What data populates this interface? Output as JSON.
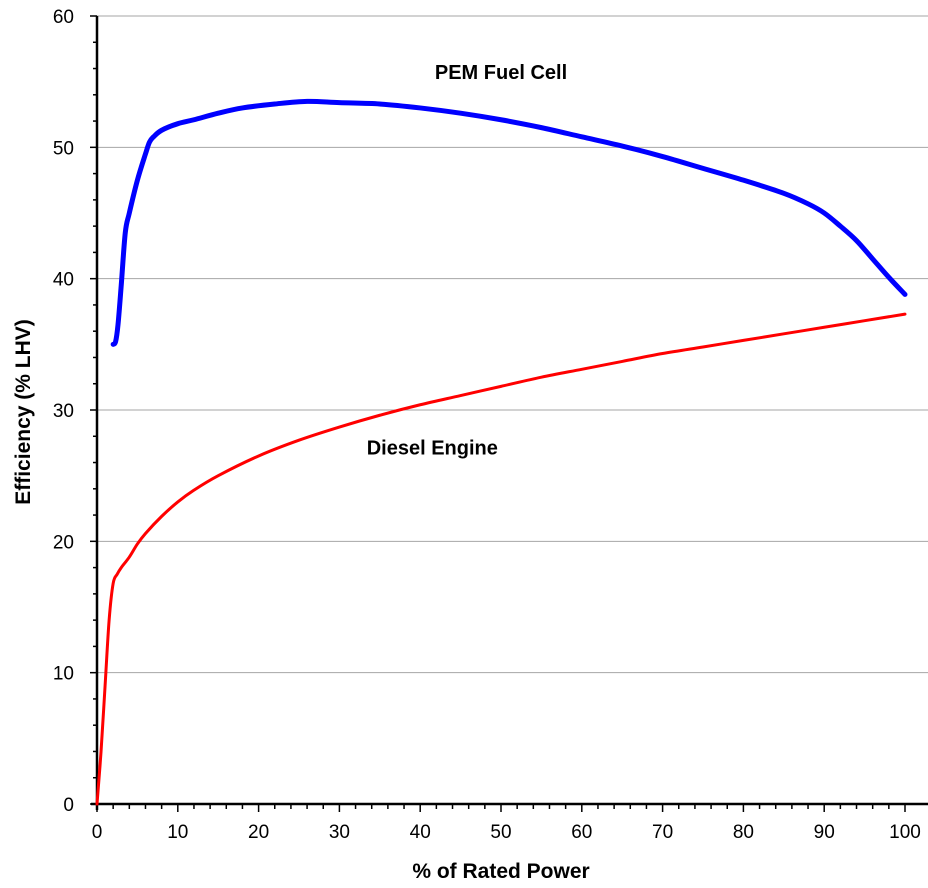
{
  "chart_data": {
    "type": "line",
    "title": "",
    "xlabel": "% of Rated Power",
    "ylabel": "Efficiency  (% LHV)",
    "xlim": [
      0,
      100
    ],
    "ylim": [
      0,
      60
    ],
    "x_ticks": [
      0,
      10,
      20,
      30,
      40,
      50,
      60,
      70,
      80,
      90,
      100
    ],
    "y_ticks": [
      0,
      10,
      20,
      30,
      40,
      50,
      60
    ],
    "grid": "horizontal",
    "series": [
      {
        "name": "PEM Fuel Cell",
        "color": "#0000ff",
        "points": [
          [
            2,
            35
          ],
          [
            2.3,
            35.2
          ],
          [
            2.6,
            36.5
          ],
          [
            3,
            39.5
          ],
          [
            3.5,
            43.5
          ],
          [
            4,
            45
          ],
          [
            5,
            47.5
          ],
          [
            6,
            49.5
          ],
          [
            6.5,
            50.4
          ],
          [
            7,
            50.8
          ],
          [
            8,
            51.3
          ],
          [
            10,
            51.8
          ],
          [
            12,
            52.1
          ],
          [
            15,
            52.6
          ],
          [
            18,
            53
          ],
          [
            22,
            53.3
          ],
          [
            26,
            53.5
          ],
          [
            30,
            53.4
          ],
          [
            35,
            53.3
          ],
          [
            40,
            53
          ],
          [
            45,
            52.6
          ],
          [
            50,
            52.1
          ],
          [
            55,
            51.5
          ],
          [
            60,
            50.8
          ],
          [
            65,
            50.1
          ],
          [
            70,
            49.3
          ],
          [
            75,
            48.4
          ],
          [
            80,
            47.5
          ],
          [
            85,
            46.5
          ],
          [
            88,
            45.7
          ],
          [
            90,
            45
          ],
          [
            92,
            44
          ],
          [
            94,
            42.9
          ],
          [
            96,
            41.5
          ],
          [
            98,
            40.1
          ],
          [
            100,
            38.8
          ]
        ]
      },
      {
        "name": "Diesel Engine",
        "color": "#ff0000",
        "points": [
          [
            0,
            0
          ],
          [
            0.5,
            4
          ],
          [
            1,
            9
          ],
          [
            1.5,
            14
          ],
          [
            2,
            16.8
          ],
          [
            2.5,
            17.5
          ],
          [
            3,
            18
          ],
          [
            4,
            18.8
          ],
          [
            5,
            19.8
          ],
          [
            6,
            20.6
          ],
          [
            8,
            21.9
          ],
          [
            10,
            23
          ],
          [
            12,
            23.9
          ],
          [
            15,
            25
          ],
          [
            20,
            26.5
          ],
          [
            25,
            27.7
          ],
          [
            30,
            28.7
          ],
          [
            35,
            29.6
          ],
          [
            40,
            30.4
          ],
          [
            45,
            31.1
          ],
          [
            50,
            31.8
          ],
          [
            55,
            32.5
          ],
          [
            60,
            33.1
          ],
          [
            65,
            33.7
          ],
          [
            70,
            34.3
          ],
          [
            75,
            34.8
          ],
          [
            80,
            35.3
          ],
          [
            85,
            35.8
          ],
          [
            90,
            36.3
          ],
          [
            95,
            36.8
          ],
          [
            100,
            37.3
          ]
        ]
      }
    ],
    "annotations": [
      {
        "text": "PEM Fuel Cell",
        "x": 50,
        "y": 55.2
      },
      {
        "text": "Diesel Engine",
        "x": 41.5,
        "y": 26.6
      }
    ]
  }
}
